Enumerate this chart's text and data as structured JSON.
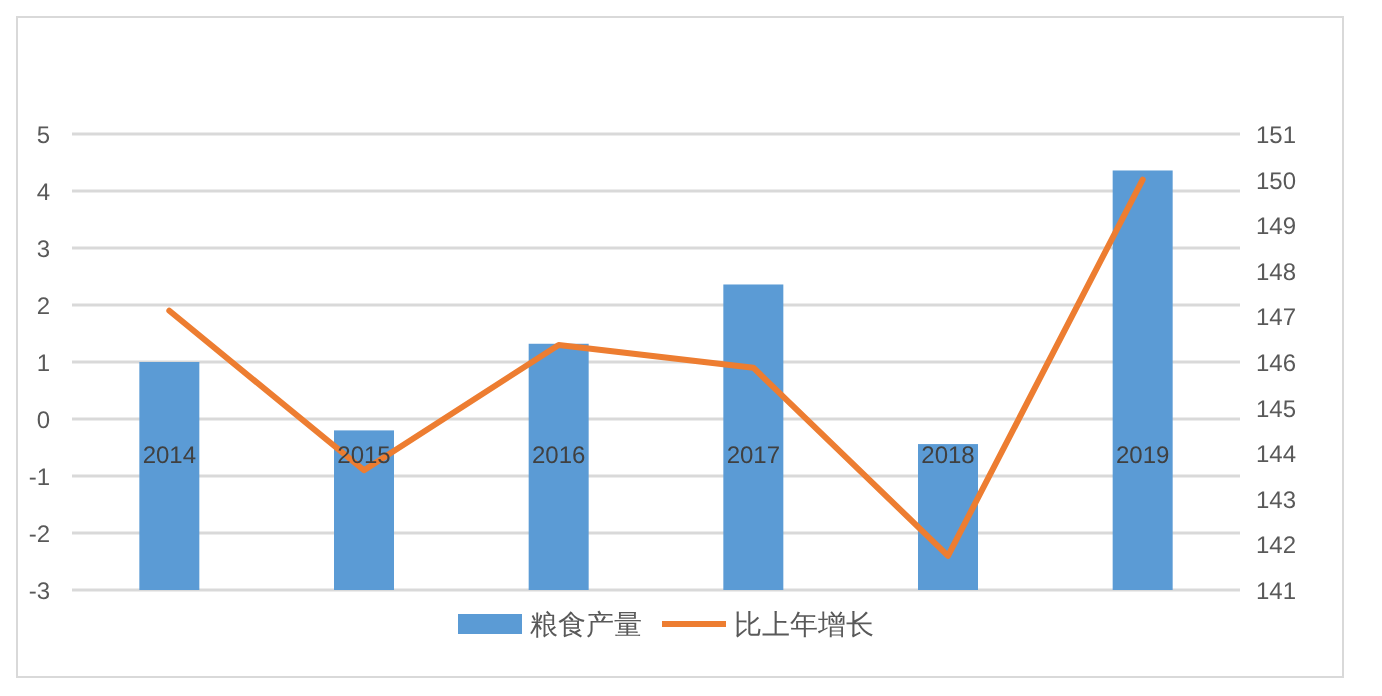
{
  "chart_data": {
    "type": "bar",
    "categories": [
      "2014",
      "2015",
      "2016",
      "2017",
      "2018",
      "2019"
    ],
    "series": [
      {
        "name": "粮食产量",
        "color": "#5b9bd5",
        "axis": "y2",
        "values": [
          146.0,
          144.5,
          146.4,
          147.7,
          144.2,
          150.2
        ]
      },
      {
        "name": "比上年增长",
        "color": "#ed7d31",
        "type": "line",
        "values": [
          1.9,
          -0.9,
          1.3,
          0.9,
          -2.4,
          4.2
        ]
      }
    ],
    "ylim": [
      -3,
      5
    ],
    "yticks": [
      -3,
      -2,
      -1,
      0,
      1,
      2,
      3,
      4,
      5
    ],
    "y2lim": [
      141,
      151
    ],
    "y2ticks": [
      141,
      142,
      143,
      144,
      145,
      146,
      147,
      148,
      149,
      150,
      151
    ],
    "grid": true,
    "legend": "bottom"
  }
}
